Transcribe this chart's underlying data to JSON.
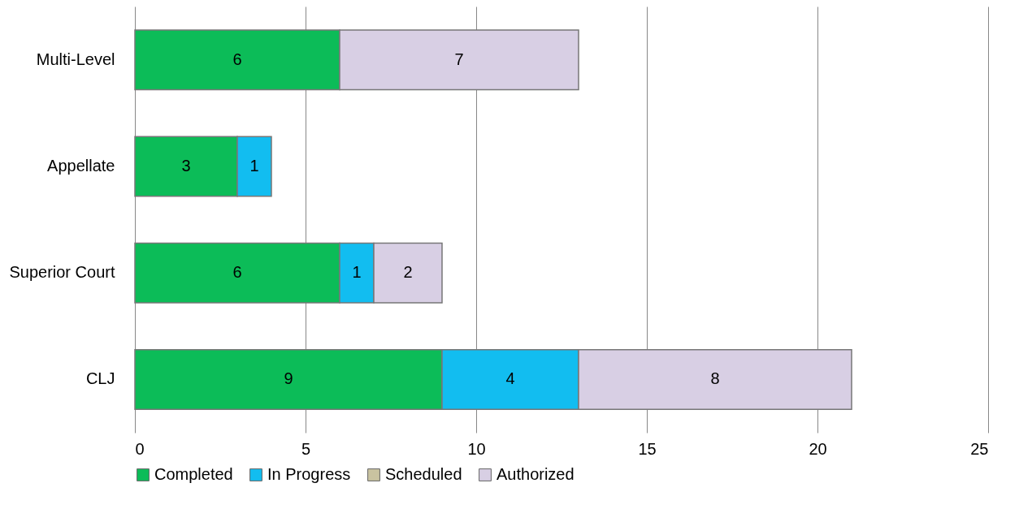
{
  "chart_data": {
    "type": "bar",
    "orientation": "horizontal",
    "stacked": true,
    "categories": [
      "Multi-Level",
      "Appellate",
      "Superior Court",
      "CLJ"
    ],
    "series": [
      {
        "name": "Completed",
        "color": "#0cbc58",
        "values": [
          6,
          3,
          6,
          9
        ]
      },
      {
        "name": "In Progress",
        "color": "#12bdf0",
        "values": [
          null,
          1,
          1,
          4
        ]
      },
      {
        "name": "Scheduled",
        "color": "#c9c3a0",
        "values": [
          null,
          null,
          null,
          null
        ]
      },
      {
        "name": "Authorized",
        "color": "#d8cfe4",
        "values": [
          7,
          null,
          2,
          8
        ]
      }
    ],
    "xlim": [
      0,
      25
    ],
    "xticks": [
      0,
      5,
      10,
      15,
      20,
      25
    ],
    "grid": "x",
    "legend": "bottom",
    "data_labels": true
  }
}
